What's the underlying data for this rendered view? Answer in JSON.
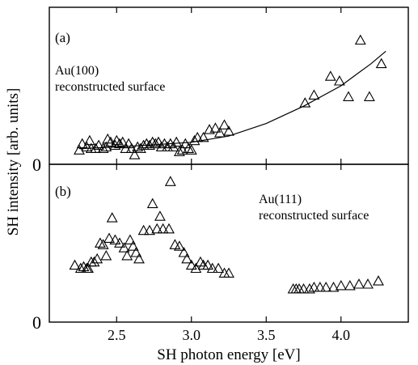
{
  "chart_data": [
    {
      "type": "scatter",
      "panel_label": "(a)",
      "annotation": [
        "Au(100)",
        "reconstructed surface"
      ],
      "xlim": [
        2.05,
        4.45
      ],
      "ylim": [
        0,
        1.0
      ],
      "x_ticks": [
        2.5,
        3.0,
        3.5,
        4.0
      ],
      "y_ticks": [
        0
      ],
      "y_tick_labels": [
        "0"
      ],
      "series": [
        {
          "marker": "triangle",
          "points": [
            [
              2.25,
              0.09
            ],
            [
              2.27,
              0.13
            ],
            [
              2.3,
              0.11
            ],
            [
              2.32,
              0.15
            ],
            [
              2.33,
              0.1
            ],
            [
              2.36,
              0.1
            ],
            [
              2.38,
              0.12
            ],
            [
              2.41,
              0.1
            ],
            [
              2.43,
              0.11
            ],
            [
              2.44,
              0.16
            ],
            [
              2.46,
              0.14
            ],
            [
              2.49,
              0.12
            ],
            [
              2.5,
              0.15
            ],
            [
              2.52,
              0.13
            ],
            [
              2.54,
              0.14
            ],
            [
              2.56,
              0.1
            ],
            [
              2.58,
              0.13
            ],
            [
              2.6,
              0.1
            ],
            [
              2.62,
              0.06
            ],
            [
              2.64,
              0.11
            ],
            [
              2.66,
              0.1
            ],
            [
              2.68,
              0.12
            ],
            [
              2.7,
              0.13
            ],
            [
              2.72,
              0.12
            ],
            [
              2.74,
              0.14
            ],
            [
              2.76,
              0.13
            ],
            [
              2.78,
              0.14
            ],
            [
              2.8,
              0.11
            ],
            [
              2.82,
              0.13
            ],
            [
              2.84,
              0.11
            ],
            [
              2.86,
              0.13
            ],
            [
              2.88,
              0.11
            ],
            [
              2.9,
              0.14
            ],
            [
              2.92,
              0.08
            ],
            [
              2.94,
              0.09
            ],
            [
              2.96,
              0.13
            ],
            [
              2.98,
              0.1
            ],
            [
              3.0,
              0.09
            ],
            [
              3.02,
              0.15
            ],
            [
              3.04,
              0.17
            ],
            [
              3.08,
              0.17
            ],
            [
              3.12,
              0.22
            ],
            [
              3.16,
              0.23
            ],
            [
              3.19,
              0.2
            ],
            [
              3.22,
              0.25
            ],
            [
              3.25,
              0.21
            ],
            [
              3.76,
              0.39
            ],
            [
              3.82,
              0.44
            ],
            [
              3.93,
              0.56
            ],
            [
              3.99,
              0.53
            ],
            [
              4.05,
              0.43
            ],
            [
              4.13,
              0.79
            ],
            [
              4.19,
              0.43
            ],
            [
              4.27,
              0.64
            ]
          ]
        },
        {
          "name": "fit",
          "type": "line",
          "x": [
            2.25,
            2.5,
            2.75,
            3.0,
            3.25,
            3.5,
            3.75,
            4.0,
            4.1,
            4.2,
            4.3
          ],
          "values": [
            0.1,
            0.11,
            0.125,
            0.14,
            0.18,
            0.26,
            0.37,
            0.5,
            0.57,
            0.64,
            0.72
          ]
        }
      ]
    },
    {
      "type": "scatter",
      "panel_label": "(b)",
      "annotation": [
        "Au(111)",
        "reconstructed surface"
      ],
      "xlim": [
        2.05,
        4.45
      ],
      "ylim": [
        0,
        1.0
      ],
      "x_ticks": [
        2.5,
        3.0,
        3.5,
        4.0
      ],
      "x_tick_labels": [
        "2.5",
        "3.0",
        "3.5",
        "4.0"
      ],
      "y_ticks": [
        0
      ],
      "y_tick_labels": [
        "0"
      ],
      "xlabel": "SH photon energy [eV]",
      "series": [
        {
          "marker": "triangle",
          "points": [
            [
              2.22,
              0.36
            ],
            [
              2.26,
              0.34
            ],
            [
              2.28,
              0.35
            ],
            [
              2.3,
              0.34
            ],
            [
              2.31,
              0.34
            ],
            [
              2.33,
              0.38
            ],
            [
              2.35,
              0.38
            ],
            [
              2.37,
              0.4
            ],
            [
              2.39,
              0.5
            ],
            [
              2.41,
              0.49
            ],
            [
              2.43,
              0.42
            ],
            [
              2.45,
              0.53
            ],
            [
              2.47,
              0.66
            ],
            [
              2.49,
              0.52
            ],
            [
              2.52,
              0.5
            ],
            [
              2.55,
              0.47
            ],
            [
              2.57,
              0.42
            ],
            [
              2.59,
              0.52
            ],
            [
              2.61,
              0.48
            ],
            [
              2.63,
              0.44
            ],
            [
              2.65,
              0.4
            ],
            [
              2.68,
              0.58
            ],
            [
              2.72,
              0.58
            ],
            [
              2.74,
              0.75
            ],
            [
              2.77,
              0.59
            ],
            [
              2.79,
              0.67
            ],
            [
              2.81,
              0.59
            ],
            [
              2.85,
              0.59
            ],
            [
              2.86,
              0.89
            ],
            [
              2.89,
              0.49
            ],
            [
              2.92,
              0.48
            ],
            [
              2.95,
              0.44
            ],
            [
              2.97,
              0.4
            ],
            [
              3.0,
              0.36
            ],
            [
              3.03,
              0.34
            ],
            [
              3.06,
              0.38
            ],
            [
              3.08,
              0.36
            ],
            [
              3.11,
              0.36
            ],
            [
              3.14,
              0.34
            ],
            [
              3.18,
              0.34
            ],
            [
              3.22,
              0.31
            ],
            [
              3.25,
              0.31
            ],
            [
              3.68,
              0.21
            ],
            [
              3.7,
              0.21
            ],
            [
              3.72,
              0.21
            ],
            [
              3.75,
              0.21
            ],
            [
              3.79,
              0.21
            ],
            [
              3.82,
              0.22
            ],
            [
              3.86,
              0.22
            ],
            [
              3.9,
              0.22
            ],
            [
              3.95,
              0.22
            ],
            [
              4.0,
              0.23
            ],
            [
              4.06,
              0.23
            ],
            [
              4.12,
              0.24
            ],
            [
              4.18,
              0.24
            ],
            [
              4.25,
              0.26
            ]
          ]
        }
      ]
    }
  ],
  "ylabel": "SH intensity [arb. units]"
}
